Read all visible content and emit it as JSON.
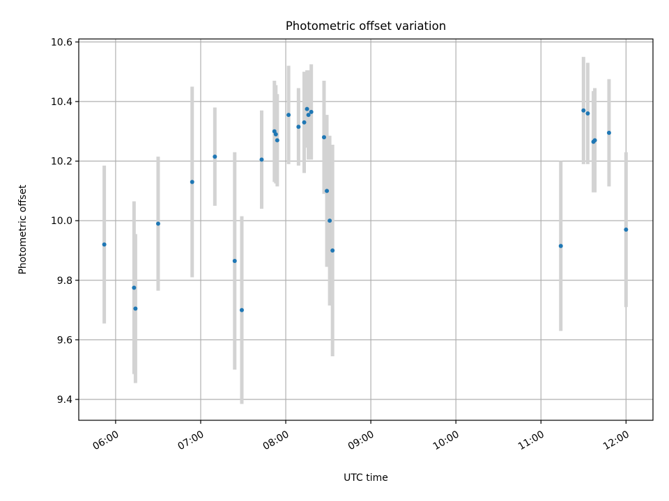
{
  "chart_data": {
    "type": "scatter",
    "title": "Photometric offset variation",
    "xlabel": "UTC time",
    "ylabel": "Photometric offset",
    "x_axis_type": "time",
    "xlim": [
      "05:34",
      "12:19"
    ],
    "ylim": [
      9.33,
      10.61
    ],
    "grid": true,
    "x_ticks": [
      "06:00",
      "07:00",
      "08:00",
      "09:00",
      "10:00",
      "11:00",
      "12:00"
    ],
    "y_ticks": [
      9.4,
      9.6,
      9.8,
      10.0,
      10.2,
      10.4,
      10.6
    ],
    "y_tick_labels": [
      "9.4",
      "9.6",
      "9.8",
      "10.0",
      "10.2",
      "10.4",
      "10.6"
    ],
    "colors": {
      "point": "#1f77b4",
      "errorbar": "#d3d3d3",
      "grid": "#b0b0b0"
    },
    "points": [
      {
        "x": "05:52",
        "y": 9.92,
        "yerr": 0.265
      },
      {
        "x": "06:13",
        "y": 9.775,
        "yerr": 0.29
      },
      {
        "x": "06:14",
        "y": 9.705,
        "yerr": 0.25
      },
      {
        "x": "06:30",
        "y": 9.99,
        "yerr": 0.225
      },
      {
        "x": "06:54",
        "y": 10.13,
        "yerr": 0.32
      },
      {
        "x": "07:10",
        "y": 10.215,
        "yerr": 0.165
      },
      {
        "x": "07:24",
        "y": 9.865,
        "yerr": 0.365
      },
      {
        "x": "07:29",
        "y": 9.7,
        "yerr": 0.315
      },
      {
        "x": "07:43",
        "y": 10.205,
        "yerr": 0.165
      },
      {
        "x": "07:52",
        "y": 10.3,
        "yerr": 0.17
      },
      {
        "x": "07:53",
        "y": 10.29,
        "yerr": 0.165
      },
      {
        "x": "07:54",
        "y": 10.27,
        "yerr": 0.155
      },
      {
        "x": "08:02",
        "y": 10.355,
        "yerr": 0.165
      },
      {
        "x": "08:09",
        "y": 10.315,
        "yerr": 0.13
      },
      {
        "x": "08:13",
        "y": 10.33,
        "yerr": 0.17
      },
      {
        "x": "08:15",
        "y": 10.375,
        "yerr": 0.13
      },
      {
        "x": "08:16",
        "y": 10.355,
        "yerr": 0.15
      },
      {
        "x": "08:18",
        "y": 10.365,
        "yerr": 0.16
      },
      {
        "x": "08:27",
        "y": 10.28,
        "yerr": 0.19
      },
      {
        "x": "08:29",
        "y": 10.1,
        "yerr": 0.255
      },
      {
        "x": "08:31",
        "y": 10.0,
        "yerr": 0.285
      },
      {
        "x": "08:33",
        "y": 9.9,
        "yerr": 0.355
      },
      {
        "x": "11:14",
        "y": 9.915,
        "yerr": 0.285
      },
      {
        "x": "11:30",
        "y": 10.37,
        "yerr": 0.18
      },
      {
        "x": "11:33",
        "y": 10.36,
        "yerr": 0.17
      },
      {
        "x": "11:37",
        "y": 10.265,
        "yerr": 0.17
      },
      {
        "x": "11:38",
        "y": 10.27,
        "yerr": 0.175
      },
      {
        "x": "11:48",
        "y": 10.295,
        "yerr": 0.18
      },
      {
        "x": "12:00",
        "y": 9.97,
        "yerr": 0.26
      }
    ]
  }
}
